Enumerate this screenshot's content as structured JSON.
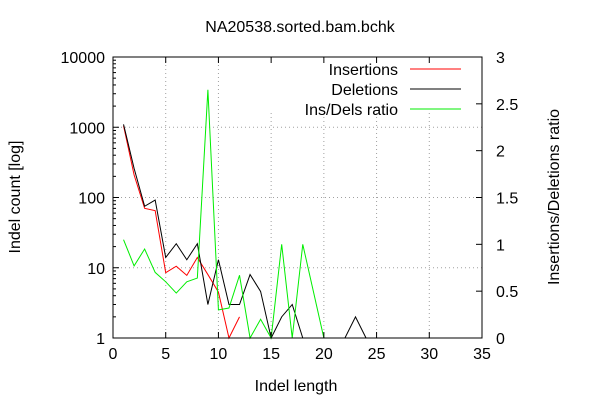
{
  "chart_data": {
    "type": "line",
    "title": "NA20538.sorted.bam.bchk",
    "xlabel": "Indel length",
    "ylabel": "Indel count [log]",
    "y2label": "Insertions/Deletions ratio",
    "xlim": [
      0,
      35
    ],
    "ylim": [
      1,
      10000
    ],
    "y2lim": [
      0,
      3
    ],
    "y_scale": "log",
    "grid": true,
    "legend_position": "top-right",
    "x_ticks": [
      0,
      5,
      10,
      15,
      20,
      25,
      30,
      35
    ],
    "y_ticks": [
      1,
      10,
      100,
      1000,
      10000
    ],
    "y_tick_labels": [
      "1",
      "10",
      "100",
      "1000",
      "10000"
    ],
    "y2_ticks": [
      0,
      0.5,
      1,
      1.5,
      2,
      2.5,
      3
    ],
    "y2_tick_labels": [
      "0",
      "0.5",
      "1",
      "1.5",
      "2",
      "2.5",
      "3"
    ],
    "series": [
      {
        "name": "Insertions",
        "axis": "y",
        "color": "#ff0000",
        "x": [
          1,
          2,
          3,
          4,
          5,
          6,
          7,
          8,
          9,
          10,
          11,
          12
        ],
        "y": [
          1050,
          210,
          70,
          65,
          8.5,
          10.5,
          7.8,
          14,
          8,
          4.5,
          1,
          2
        ]
      },
      {
        "name": "Deletions",
        "axis": "y",
        "color": "#000000",
        "x": [
          1,
          2,
          3,
          4,
          5,
          6,
          7,
          8,
          9,
          10,
          11,
          12,
          13,
          14,
          15,
          16,
          17,
          18,
          19,
          20,
          21,
          22,
          23,
          24
        ],
        "y": [
          1100,
          260,
          75,
          92,
          14,
          22,
          13,
          22,
          3,
          13,
          3,
          3,
          8,
          4.6,
          1,
          2,
          3,
          1,
          1,
          1,
          1,
          1,
          2,
          1
        ]
      },
      {
        "name": "Ins/Dels ratio",
        "axis": "y2",
        "color": "#00ee00",
        "x": [
          1,
          2,
          3,
          4,
          5,
          6,
          7,
          8,
          9,
          10,
          11,
          12,
          13,
          14,
          15,
          16,
          17,
          18,
          19,
          20
        ],
        "y": [
          1.05,
          0.77,
          0.95,
          0.7,
          0.6,
          0.48,
          0.6,
          0.64,
          2.65,
          0.3,
          0.32,
          0.67,
          0,
          0.2,
          0,
          1,
          0,
          1,
          0.5,
          0
        ]
      }
    ]
  }
}
